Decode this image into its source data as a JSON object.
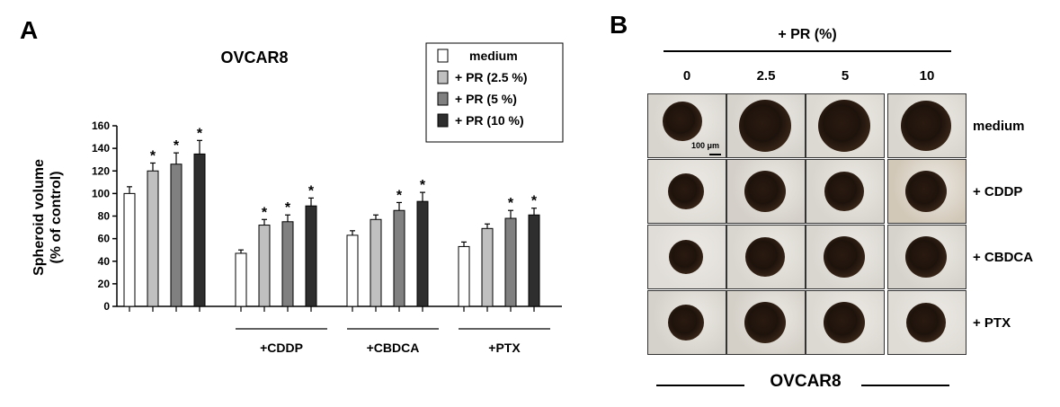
{
  "panel_a": {
    "letter": "A",
    "chart_data": {
      "type": "bar",
      "title": "OVCAR8",
      "ylabel_line1": "Spheroid volume",
      "ylabel_line2": "(% of control)",
      "xlabel": "",
      "ylim": [
        0,
        160
      ],
      "yticks": [
        "0",
        "20",
        "40",
        "60",
        "80",
        "100",
        "120",
        "140",
        "160"
      ],
      "groups": [
        "",
        "+CDDP",
        "+CBDCA",
        "+PTX"
      ],
      "series": [
        {
          "name": "medium",
          "color": "#ffffff",
          "values": [
            100,
            47,
            63,
            53
          ],
          "errors": [
            6,
            3,
            4,
            4
          ],
          "sig": [
            "",
            "",
            "",
            ""
          ]
        },
        {
          "name": "+ PR (2.5 %)",
          "color": "#c0c0c0",
          "values": [
            120,
            72,
            77,
            69
          ],
          "errors": [
            7,
            5,
            4,
            4
          ],
          "sig": [
            "*",
            "*",
            "",
            ""
          ]
        },
        {
          "name": "+ PR (5 %)",
          "color": "#808080",
          "values": [
            126,
            75,
            85,
            78
          ],
          "errors": [
            10,
            6,
            7,
            7
          ],
          "sig": [
            "*",
            "*",
            "*",
            "*"
          ]
        },
        {
          "name": "+ PR (10 %)",
          "color": "#2e2e2e",
          "values": [
            135,
            89,
            93,
            81
          ],
          "errors": [
            12,
            7,
            8,
            6
          ],
          "sig": [
            "*",
            "*",
            "*",
            "*"
          ]
        }
      ]
    }
  },
  "panel_b": {
    "letter": "B",
    "header": "+ PR (%)",
    "columns": [
      "0",
      "2.5",
      "5",
      "10"
    ],
    "rows": [
      "medium",
      "+ CDDP",
      "+ CBDCA",
      "+ PTX"
    ],
    "scale_bar": "100 μm",
    "footer": "OVCAR8"
  }
}
